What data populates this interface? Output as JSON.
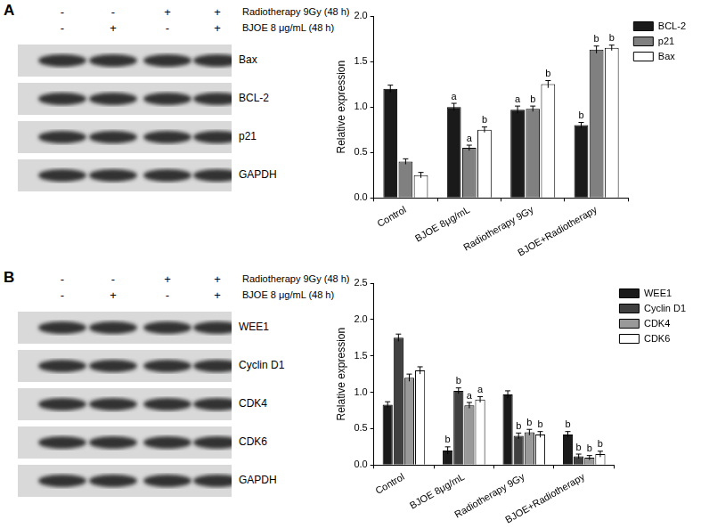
{
  "blots": [
    {
      "panel": "A",
      "treatments": [
        {
          "name": "Radiotherapy 9Gy (48 h)",
          "lanes": [
            "-",
            "-",
            "+",
            "+"
          ]
        },
        {
          "name": "BJOE 8 μg/mL (48 h)",
          "lanes": [
            "-",
            "+",
            "-",
            "+"
          ]
        }
      ],
      "bands": [
        "Bax",
        "BCL-2",
        "p21",
        "GAPDH"
      ]
    },
    {
      "panel": "B",
      "treatments": [
        {
          "name": "Radiotherapy 9Gy (48 h)",
          "lanes": [
            "-",
            "-",
            "+",
            "+"
          ]
        },
        {
          "name": "BJOE 8 μg/mL (48 h)",
          "lanes": [
            "-",
            "+",
            "-",
            "+"
          ]
        }
      ],
      "bands": [
        "WEE1",
        "Cyclin D1",
        "CDK4",
        "CDK6",
        "GAPDH"
      ]
    }
  ],
  "chart_data": [
    {
      "type": "bar",
      "categories": [
        "Control",
        "BJOE 8μg/mL",
        "Radiotherapy 9Gy",
        "BJOE+Radiotherapy"
      ],
      "series": [
        {
          "name": "BCL-2",
          "color": "#1a1a1a",
          "values": [
            1.2,
            1.0,
            0.97,
            0.8
          ],
          "errors": [
            0.04,
            0.04,
            0.04,
            0.03
          ],
          "significance": [
            null,
            "a",
            "a",
            "b"
          ]
        },
        {
          "name": "p21",
          "color": "#808080",
          "values": [
            0.4,
            0.55,
            0.98,
            1.63
          ],
          "errors": [
            0.03,
            0.03,
            0.03,
            0.04
          ],
          "significance": [
            null,
            "a",
            "b",
            "b"
          ]
        },
        {
          "name": "Bax",
          "color": "#ffffff",
          "values": [
            0.25,
            0.75,
            1.25,
            1.65
          ],
          "errors": [
            0.03,
            0.03,
            0.04,
            0.03
          ],
          "significance": [
            null,
            "b",
            "b",
            "b"
          ]
        }
      ],
      "y_label": "Relative expression",
      "ylim": [
        0,
        2.0
      ],
      "yticks": [
        {
          "value": 0,
          "label": "0.0"
        },
        0.5,
        {
          "value": 1,
          "label": "1.0"
        },
        1.5,
        {
          "value": 2,
          "label": "2.0"
        }
      ],
      "grid": false,
      "legend": "upper right"
    },
    {
      "type": "bar",
      "categories": [
        "Control",
        "BJOE 8μg/mL",
        "Radiotherapy 9Gy",
        "BJOE+Radiotherapy"
      ],
      "series": [
        {
          "name": "WEE1",
          "color": "#1a1a1a",
          "values": [
            0.83,
            0.2,
            0.97,
            0.42
          ],
          "errors": [
            0.04,
            0.05,
            0.05,
            0.04
          ],
          "significance": [
            null,
            "b",
            null,
            "b"
          ]
        },
        {
          "name": "Cyclin D1",
          "color": "#404040",
          "values": [
            1.75,
            1.02,
            0.4,
            0.12
          ],
          "errors": [
            0.05,
            0.04,
            0.04,
            0.03
          ],
          "significance": [
            null,
            "b",
            "b",
            "b"
          ]
        },
        {
          "name": "CDK4",
          "color": "#999999",
          "values": [
            1.2,
            0.82,
            0.45,
            0.1
          ],
          "errors": [
            0.05,
            0.04,
            0.04,
            0.03
          ],
          "significance": [
            null,
            "a",
            "b",
            "b"
          ]
        },
        {
          "name": "CDK6",
          "color": "#ffffff",
          "values": [
            1.3,
            0.9,
            0.42,
            0.15
          ],
          "errors": [
            0.05,
            0.04,
            0.04,
            0.04
          ],
          "significance": [
            null,
            "a",
            "b",
            "b"
          ]
        }
      ],
      "y_label": "Relative expression",
      "ylim": [
        0,
        2.5
      ],
      "yticks": [
        {
          "value": 0,
          "label": "0.0"
        },
        0.5,
        {
          "value": 1,
          "label": "1.0"
        },
        1.5,
        {
          "value": 2,
          "label": "2.0"
        },
        2.5
      ],
      "grid": false,
      "legend": "upper right"
    }
  ]
}
